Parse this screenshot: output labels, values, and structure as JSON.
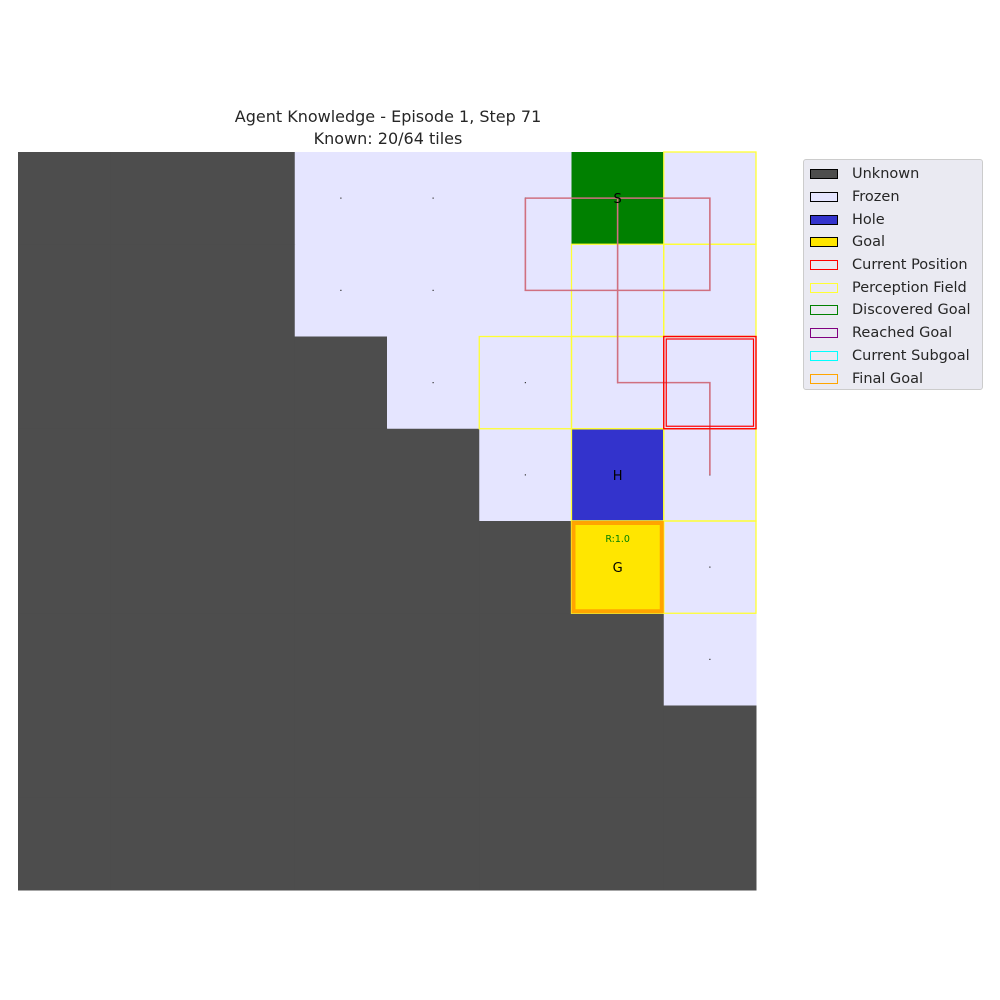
{
  "title_line1": "Agent Knowledge - Episode 1, Step 71",
  "title_line2": "Known: 20/64 tiles",
  "grid": {
    "rows": 8,
    "cols": 8,
    "cells": [
      "UUUFFFSF",
      "UUUFFFFF",
      "UUUUFFFF",
      "UUUUUFHF",
      "UUUUUUGF",
      "UUUUUUUF",
      "UUUUUUUU",
      "UUUUUUUU"
    ],
    "labels": [
      {
        "row": 0,
        "col": 6,
        "text": "S"
      },
      {
        "row": 3,
        "col": 6,
        "text": "H"
      },
      {
        "row": 4,
        "col": 6,
        "text": "G"
      }
    ],
    "reward_label": {
      "row": 4,
      "col": 6,
      "text": "R:1.0",
      "color": "#008000"
    },
    "current_position": {
      "row": 2,
      "col": 7
    },
    "final_goal": {
      "row": 4,
      "col": 6
    },
    "perception_field": [
      {
        "row": 0,
        "col": 7
      },
      {
        "row": 1,
        "col": 6
      },
      {
        "row": 1,
        "col": 7
      },
      {
        "row": 2,
        "col": 5
      },
      {
        "row": 2,
        "col": 6
      },
      {
        "row": 2,
        "col": 7
      },
      {
        "row": 3,
        "col": 6
      },
      {
        "row": 3,
        "col": 7
      },
      {
        "row": 4,
        "col": 6
      },
      {
        "row": 4,
        "col": 7
      }
    ],
    "path": [
      {
        "row": 0,
        "col": 5
      },
      {
        "row": 0,
        "col": 7
      },
      {
        "row": 1,
        "col": 7
      },
      {
        "row": 1,
        "col": 5
      },
      {
        "row": 0,
        "col": 5
      }
    ],
    "path2": [
      {
        "row": 0,
        "col": 6
      },
      {
        "row": 2,
        "col": 6
      },
      {
        "row": 2,
        "col": 7
      },
      {
        "row": 3,
        "col": 7
      }
    ]
  },
  "colors": {
    "unknown": "#4d4d4d",
    "frozen": "#e5e5ff",
    "hole": "#3333cc",
    "goal": "#ffe600",
    "start": "#008000",
    "current_position": "#ff0000",
    "perception_field": "#ffff33",
    "discovered_goal": "#008000",
    "reached_goal": "#800080",
    "current_subgoal": "#00ffff",
    "final_goal": "#ffa500",
    "path": "#d07080"
  },
  "legend": [
    {
      "label": "Unknown",
      "fill": "#4d4d4d",
      "edge": "#000000"
    },
    {
      "label": "Frozen",
      "fill": "#e5e5ff",
      "edge": "#000000"
    },
    {
      "label": "Hole",
      "fill": "#3333cc",
      "edge": "#000000"
    },
    {
      "label": "Goal",
      "fill": "#ffe600",
      "edge": "#000000"
    },
    {
      "label": "Current Position",
      "fill": "none",
      "edge": "#ff0000"
    },
    {
      "label": "Perception Field",
      "fill": "none",
      "edge": "#ffff33"
    },
    {
      "label": "Discovered Goal",
      "fill": "none",
      "edge": "#008000"
    },
    {
      "label": "Reached Goal",
      "fill": "none",
      "edge": "#800080"
    },
    {
      "label": "Current Subgoal",
      "fill": "none",
      "edge": "#00ffff"
    },
    {
      "label": "Final Goal",
      "fill": "none",
      "edge": "#ffa500"
    }
  ]
}
